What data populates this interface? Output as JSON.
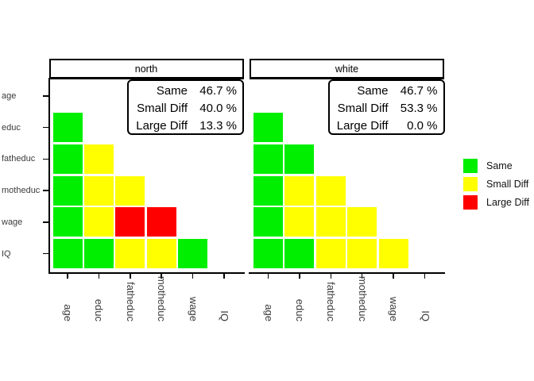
{
  "chart_data": {
    "type": "heatmap",
    "description": "Faceted lower-triangle comparison matrix of variables, colored by difference level, one facet per group",
    "x_categories": [
      "age",
      "educ",
      "fatheduc",
      "motheduc",
      "wage",
      "IQ"
    ],
    "y_categories": [
      "age",
      "educ",
      "fatheduc",
      "motheduc",
      "wage",
      "IQ"
    ],
    "level_colors": {
      "Same": "#00EE00",
      "Small Diff": "#FFFF00",
      "Large Diff": "#FF0000"
    },
    "legend": {
      "position": "right",
      "entries": [
        {
          "label": "Same",
          "color": "#00EE00"
        },
        {
          "label": "Small Diff",
          "color": "#FFFF00"
        },
        {
          "label": "Large Diff",
          "color": "#FF0000"
        }
      ]
    },
    "facets": [
      {
        "title": "north",
        "stats": [
          {
            "label": "Same",
            "value": "46.7 %"
          },
          {
            "label": "Small Diff",
            "value": "40.0 %"
          },
          {
            "label": "Large Diff",
            "value": "13.3 %"
          }
        ],
        "cells": [
          {
            "y": "educ",
            "x": "age",
            "level": "Same"
          },
          {
            "y": "fatheduc",
            "x": "age",
            "level": "Same"
          },
          {
            "y": "fatheduc",
            "x": "educ",
            "level": "Small Diff"
          },
          {
            "y": "motheduc",
            "x": "age",
            "level": "Same"
          },
          {
            "y": "motheduc",
            "x": "educ",
            "level": "Small Diff"
          },
          {
            "y": "motheduc",
            "x": "fatheduc",
            "level": "Small Diff"
          },
          {
            "y": "wage",
            "x": "age",
            "level": "Same"
          },
          {
            "y": "wage",
            "x": "educ",
            "level": "Small Diff"
          },
          {
            "y": "wage",
            "x": "fatheduc",
            "level": "Large Diff"
          },
          {
            "y": "wage",
            "x": "motheduc",
            "level": "Large Diff"
          },
          {
            "y": "IQ",
            "x": "age",
            "level": "Same"
          },
          {
            "y": "IQ",
            "x": "educ",
            "level": "Same"
          },
          {
            "y": "IQ",
            "x": "fatheduc",
            "level": "Small Diff"
          },
          {
            "y": "IQ",
            "x": "motheduc",
            "level": "Small Diff"
          },
          {
            "y": "IQ",
            "x": "wage",
            "level": "Same"
          }
        ]
      },
      {
        "title": "white",
        "stats": [
          {
            "label": "Same",
            "value": "46.7 %"
          },
          {
            "label": "Small Diff",
            "value": "53.3 %"
          },
          {
            "label": "Large Diff",
            "value": "0.0 %"
          }
        ],
        "cells": [
          {
            "y": "educ",
            "x": "age",
            "level": "Same"
          },
          {
            "y": "fatheduc",
            "x": "age",
            "level": "Same"
          },
          {
            "y": "fatheduc",
            "x": "educ",
            "level": "Same"
          },
          {
            "y": "motheduc",
            "x": "age",
            "level": "Same"
          },
          {
            "y": "motheduc",
            "x": "educ",
            "level": "Small Diff"
          },
          {
            "y": "motheduc",
            "x": "fatheduc",
            "level": "Small Diff"
          },
          {
            "y": "wage",
            "x": "age",
            "level": "Same"
          },
          {
            "y": "wage",
            "x": "educ",
            "level": "Small Diff"
          },
          {
            "y": "wage",
            "x": "fatheduc",
            "level": "Small Diff"
          },
          {
            "y": "wage",
            "x": "motheduc",
            "level": "Small Diff"
          },
          {
            "y": "IQ",
            "x": "age",
            "level": "Same"
          },
          {
            "y": "IQ",
            "x": "educ",
            "level": "Same"
          },
          {
            "y": "IQ",
            "x": "fatheduc",
            "level": "Small Diff"
          },
          {
            "y": "IQ",
            "x": "motheduc",
            "level": "Small Diff"
          },
          {
            "y": "IQ",
            "x": "wage",
            "level": "Small Diff"
          }
        ]
      }
    ]
  }
}
